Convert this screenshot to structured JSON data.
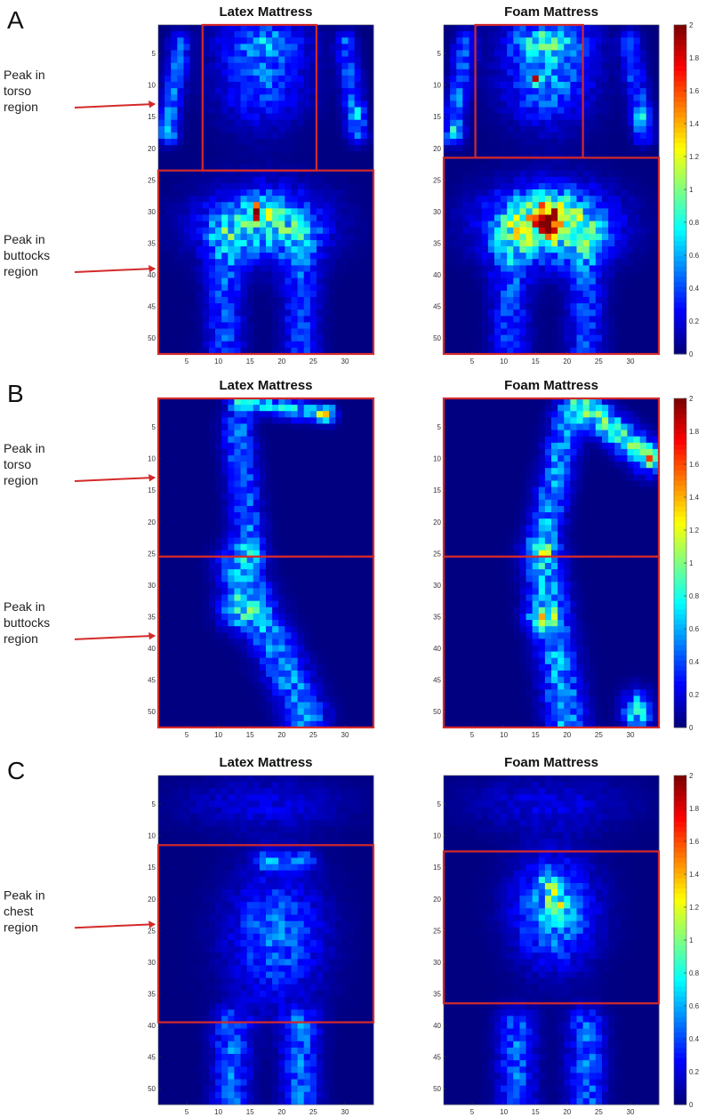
{
  "chart_data": [
    {
      "type": "heatmap",
      "panel": "A",
      "maps": [
        {
          "title": "Latex Mattress",
          "posture": "supine",
          "surface": "latex"
        },
        {
          "title": "Foam Mattress",
          "posture": "supine",
          "surface": "foam"
        }
      ],
      "grid_cols": 34,
      "grid_rows": 52,
      "xticks": [
        5,
        10,
        15,
        20,
        25,
        30
      ],
      "yticks": [
        5,
        10,
        15,
        20,
        25,
        30,
        35,
        40,
        45,
        50
      ],
      "colorbar": {
        "min": 0,
        "max": 2,
        "ticks": [
          0,
          0.2,
          0.4,
          0.6,
          0.8,
          1,
          1.2,
          1.4,
          1.6,
          1.8,
          2
        ]
      },
      "annotations": [
        {
          "lines": [
            "Peak in",
            "torso",
            "region"
          ],
          "target_row": 13
        },
        {
          "lines": [
            "Peak in",
            "buttocks",
            "region"
          ],
          "target_row": 39
        }
      ],
      "regions": [
        {
          "map": 0,
          "cols": [
            8,
            25
          ],
          "rows": [
            1,
            23
          ]
        },
        {
          "map": 0,
          "cols": [
            1,
            34
          ],
          "rows": [
            24,
            52
          ]
        },
        {
          "map": 1,
          "cols": [
            6,
            22
          ],
          "rows": [
            1,
            21
          ]
        },
        {
          "map": 1,
          "cols": [
            1,
            34
          ],
          "rows": [
            22,
            52
          ]
        }
      ]
    },
    {
      "type": "heatmap",
      "panel": "B",
      "maps": [
        {
          "title": "Latex Mattress",
          "posture": "side",
          "surface": "latex"
        },
        {
          "title": "Foam Mattress",
          "posture": "side",
          "surface": "foam"
        }
      ],
      "grid_cols": 34,
      "grid_rows": 52,
      "xticks": [
        5,
        10,
        15,
        20,
        25,
        30
      ],
      "yticks": [
        5,
        10,
        15,
        20,
        25,
        30,
        35,
        40,
        45,
        50
      ],
      "colorbar": {
        "min": 0,
        "max": 2,
        "ticks": [
          0,
          0.2,
          0.4,
          0.6,
          0.8,
          1,
          1.2,
          1.4,
          1.6,
          1.8,
          2
        ]
      },
      "annotations": [
        {
          "lines": [
            "Peak in",
            "torso",
            "region"
          ],
          "target_row": 13
        },
        {
          "lines": [
            "Peak in",
            "buttocks",
            "region"
          ],
          "target_row": 38
        }
      ],
      "regions": [
        {
          "map": 0,
          "cols": [
            1,
            34
          ],
          "rows": [
            1,
            25
          ]
        },
        {
          "map": 0,
          "cols": [
            1,
            34
          ],
          "rows": [
            26,
            52
          ]
        },
        {
          "map": 1,
          "cols": [
            1,
            34
          ],
          "rows": [
            1,
            25
          ]
        },
        {
          "map": 1,
          "cols": [
            1,
            34
          ],
          "rows": [
            26,
            52
          ]
        }
      ]
    },
    {
      "type": "heatmap",
      "panel": "C",
      "maps": [
        {
          "title": "Latex Mattress",
          "posture": "prone",
          "surface": "latex"
        },
        {
          "title": "Foam Mattress",
          "posture": "prone",
          "surface": "foam"
        }
      ],
      "grid_cols": 34,
      "grid_rows": 52,
      "xticks": [
        5,
        10,
        15,
        20,
        25,
        30
      ],
      "yticks": [
        5,
        10,
        15,
        20,
        25,
        30,
        35,
        40,
        45,
        50
      ],
      "colorbar": {
        "min": 0,
        "max": 2,
        "ticks": [
          0,
          0.2,
          0.4,
          0.6,
          0.8,
          1,
          1.2,
          1.4,
          1.6,
          1.8,
          2
        ]
      },
      "annotations": [
        {
          "lines": [
            "Peak in",
            "chest",
            "region"
          ],
          "target_row": 24
        }
      ],
      "regions": [
        {
          "map": 0,
          "cols": [
            1,
            34
          ],
          "rows": [
            12,
            39
          ]
        },
        {
          "map": 1,
          "cols": [
            1,
            34
          ],
          "rows": [
            13,
            36
          ]
        }
      ]
    }
  ]
}
